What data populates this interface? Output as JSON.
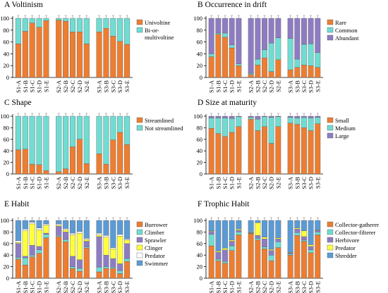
{
  "figure": {
    "categories": [
      "S1-A",
      "S1-B",
      "S1-C",
      "S1-D",
      "S1-E",
      "S2-A",
      "S2-B",
      "S2-C",
      "S2-D",
      "S2-E",
      "S3-A",
      "S3-B",
      "S3-C",
      "S3-D",
      "S3-E"
    ]
  },
  "chart_data": [
    {
      "type": "bar",
      "stacked": true,
      "panel": "A",
      "title": "Voltinism",
      "ylim": [
        0,
        100
      ],
      "yticks": [
        0,
        20,
        40,
        60,
        80,
        100
      ],
      "legend": "right",
      "categories": [
        "S1-A",
        "S1-B",
        "S1-C",
        "S1-D",
        "S1-E",
        "S2-A",
        "S2-B",
        "S2-C",
        "S2-D",
        "S2-E",
        "S3-A",
        "S3-B",
        "S3-C",
        "S3-D",
        "S3-E"
      ],
      "series": [
        {
          "name": "Univoltine",
          "color": "#ED7D31",
          "values": [
            57,
            78,
            92,
            85,
            96,
            97,
            95,
            77,
            77,
            57,
            77,
            83,
            70,
            61,
            56
          ]
        },
        {
          "name": "Bi-or-multivoltine",
          "color": "#70DCD2",
          "values": [
            43,
            22,
            8,
            15,
            4,
            3,
            5,
            23,
            23,
            43,
            23,
            17,
            30,
            39,
            44
          ]
        }
      ]
    },
    {
      "type": "bar",
      "stacked": true,
      "panel": "B",
      "title": "Occurrence in drift",
      "ylim": [
        0,
        100
      ],
      "yticks": [
        0,
        20,
        40,
        60,
        80,
        100
      ],
      "legend": "right",
      "categories": [
        "S1-A",
        "S1-B",
        "S1-C",
        "S1-D",
        "S1-E",
        "S2-A",
        "S2-B",
        "S2-C",
        "S2-D",
        "S2-E",
        "S3-A",
        "S3-B",
        "S3-C",
        "S3-D",
        "S3-E"
      ],
      "series": [
        {
          "name": "Rare",
          "color": "#ED7D31",
          "values": [
            35,
            73,
            68,
            50,
            20,
            5,
            21,
            33,
            10,
            30,
            13,
            17,
            21,
            20,
            17
          ]
        },
        {
          "name": "Common",
          "color": "#70DCD2",
          "values": [
            5,
            2,
            7,
            5,
            3,
            2,
            10,
            14,
            48,
            37,
            53,
            14,
            35,
            37,
            25
          ]
        },
        {
          "name": "Abundant",
          "color": "#8E7CC3",
          "values": [
            60,
            25,
            25,
            45,
            77,
            93,
            69,
            53,
            42,
            33,
            34,
            69,
            44,
            43,
            58
          ]
        }
      ]
    },
    {
      "type": "bar",
      "stacked": true,
      "panel": "C",
      "title": "Shape",
      "ylim": [
        0,
        100
      ],
      "yticks": [
        0,
        20,
        40,
        60,
        80,
        100
      ],
      "legend": "right",
      "categories": [
        "S1-A",
        "S1-B",
        "S1-C",
        "S1-D",
        "S1-E",
        "S2-A",
        "S2-B",
        "S2-C",
        "S2-D",
        "S2-E",
        "S3-A",
        "S3-B",
        "S3-C",
        "S3-D",
        "S3-E"
      ],
      "series": [
        {
          "name": "Streamlined",
          "color": "#ED7D31",
          "values": [
            42,
            43,
            17,
            16,
            6,
            4,
            9,
            47,
            60,
            18,
            35,
            17,
            59,
            72,
            51
          ]
        },
        {
          "name": "Not streamlined",
          "color": "#70DCD2",
          "values": [
            58,
            57,
            83,
            84,
            94,
            96,
            91,
            53,
            40,
            82,
            65,
            83,
            41,
            28,
            49
          ]
        }
      ]
    },
    {
      "type": "bar",
      "stacked": true,
      "panel": "D",
      "title": "Size at maturity",
      "ylim": [
        0,
        100
      ],
      "yticks": [
        0,
        20,
        40,
        60,
        80,
        100
      ],
      "legend": "right",
      "categories": [
        "S1-A",
        "S1-B",
        "S1-C",
        "S1-D",
        "S1-E",
        "S2-A",
        "S2-B",
        "S2-C",
        "S2-D",
        "S2-E",
        "S3-A",
        "S3-B",
        "S3-C",
        "S3-D",
        "S3-E"
      ],
      "series": [
        {
          "name": "Small",
          "color": "#ED7D31",
          "values": [
            79,
            70,
            65,
            72,
            82,
            95,
            75,
            82,
            53,
            82,
            88,
            86,
            80,
            75,
            87
          ]
        },
        {
          "name": "Medium",
          "color": "#70DCD2",
          "values": [
            18,
            27,
            32,
            24,
            17,
            3,
            20,
            17,
            45,
            17,
            10,
            11,
            18,
            22,
            11
          ]
        },
        {
          "name": "Large",
          "color": "#8E7CC3",
          "values": [
            3,
            3,
            3,
            4,
            1,
            2,
            5,
            1,
            2,
            1,
            2,
            3,
            2,
            3,
            2
          ]
        }
      ]
    },
    {
      "type": "bar",
      "stacked": true,
      "panel": "E",
      "title": "Habit",
      "ylim": [
        0,
        100
      ],
      "yticks": [
        0,
        20,
        40,
        60,
        80,
        100
      ],
      "legend": "right",
      "categories": [
        "S1-A",
        "S1-B",
        "S1-C",
        "S1-D",
        "S1-E",
        "S2-A",
        "S2-B",
        "S2-C",
        "S2-D",
        "S2-E",
        "S3-A",
        "S3-B",
        "S3-C",
        "S3-D",
        "S3-E"
      ],
      "series": [
        {
          "name": "Burrower",
          "color": "#ED7D31",
          "values": [
            33,
            23,
            37,
            43,
            70,
            72,
            63,
            17,
            12,
            52,
            11,
            17,
            17,
            8,
            29
          ]
        },
        {
          "name": "Climber",
          "color": "#70DCD2",
          "values": [
            3,
            12,
            3,
            6,
            6,
            2,
            4,
            3,
            5,
            2,
            8,
            3,
            2,
            5,
            5
          ]
        },
        {
          "name": "Sprawler",
          "color": "#8E7CC3",
          "values": [
            24,
            3,
            17,
            6,
            2,
            16,
            13,
            18,
            15,
            10,
            53,
            20,
            15,
            12,
            26
          ]
        },
        {
          "name": "Clinger",
          "color": "#FFFF40",
          "values": [
            2,
            44,
            37,
            29,
            14,
            2,
            4,
            37,
            46,
            3,
            3,
            31,
            17,
            48,
            6
          ]
        },
        {
          "name": "Predator",
          "color": "#FFFFFF",
          "values": [
            3,
            3,
            3,
            3,
            2,
            2,
            2,
            3,
            3,
            2,
            3,
            3,
            2,
            3,
            2
          ]
        },
        {
          "name": "Swimmer",
          "color": "#5B9BD5",
          "values": [
            35,
            15,
            3,
            13,
            6,
            6,
            14,
            22,
            19,
            31,
            22,
            26,
            47,
            24,
            32
          ]
        }
      ]
    },
    {
      "type": "bar",
      "stacked": true,
      "panel": "F",
      "title": "Trophic Habit",
      "ylim": [
        0,
        100
      ],
      "yticks": [
        0,
        20,
        40,
        60,
        80,
        100
      ],
      "legend": "right",
      "categories": [
        "S1-A",
        "S1-B",
        "S1-C",
        "S1-D",
        "S1-E",
        "S2-A",
        "S2-B",
        "S2-C",
        "S2-D",
        "S2-E",
        "S3-A",
        "S3-B",
        "S3-C",
        "S3-D",
        "S3-E"
      ],
      "series": [
        {
          "name": "Collector-gatherer",
          "color": "#ED7D31",
          "values": [
            56,
            30,
            26,
            48,
            75,
            77,
            66,
            51,
            30,
            53,
            40,
            74,
            64,
            44,
            75
          ]
        },
        {
          "name": "Collector-filterer",
          "color": "#70DCD2",
          "values": [
            20,
            3,
            3,
            8,
            5,
            1,
            3,
            3,
            10,
            10,
            2,
            5,
            2,
            5,
            5
          ]
        },
        {
          "name": "Herbivore",
          "color": "#8E7CC3",
          "values": [
            5,
            12,
            20,
            8,
            3,
            1,
            5,
            14,
            8,
            5,
            2,
            6,
            6,
            6,
            3
          ]
        },
        {
          "name": "Predator",
          "color": "#FFFF40",
          "values": [
            1,
            2,
            3,
            2,
            2,
            1,
            22,
            3,
            2,
            2,
            1,
            2,
            10,
            3,
            1
          ]
        },
        {
          "name": "Shredder",
          "color": "#5B9BD5",
          "values": [
            18,
            53,
            48,
            34,
            15,
            20,
            4,
            29,
            50,
            30,
            55,
            13,
            18,
            42,
            16
          ]
        }
      ]
    }
  ]
}
